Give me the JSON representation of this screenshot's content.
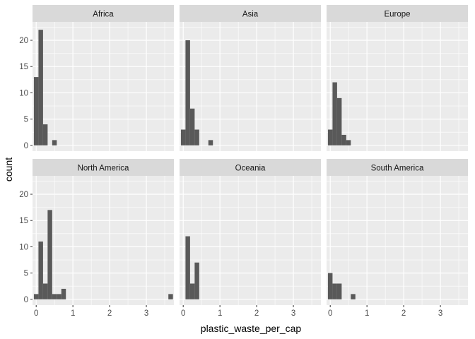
{
  "chart_data": {
    "type": "histogram",
    "title": "",
    "xlabel": "plastic_waste_per_cap",
    "ylabel": "count",
    "xlim": [
      -0.1,
      3.75
    ],
    "ylim": [
      -1.1,
      23.5
    ],
    "x_ticks": [
      0,
      1,
      2,
      3
    ],
    "x_tick_labels": [
      "0",
      "1",
      "2",
      "3"
    ],
    "y_ticks": [
      0,
      5,
      10,
      15,
      20
    ],
    "y_tick_labels": [
      "0",
      "5",
      "10",
      "15",
      "20"
    ],
    "bin_width": 0.1245,
    "facet_layout": "2 rows x 3 columns, shared axes",
    "grid": true,
    "colors": {
      "panel_bg": "#ebebeb",
      "grid_major": "#ffffff",
      "strip_bg": "#d9d9d9",
      "bar_fill": "#595959"
    },
    "facets": [
      {
        "label": "Africa",
        "bins": [
          {
            "x0": -0.0623,
            "x1": 0.0623,
            "count": 13
          },
          {
            "x0": 0.0623,
            "x1": 0.1868,
            "count": 22
          },
          {
            "x0": 0.1868,
            "x1": 0.3113,
            "count": 4
          },
          {
            "x0": 0.4358,
            "x1": 0.5603,
            "count": 1
          }
        ]
      },
      {
        "label": "Asia",
        "bins": [
          {
            "x0": -0.0623,
            "x1": 0.0623,
            "count": 3
          },
          {
            "x0": 0.0623,
            "x1": 0.1868,
            "count": 20
          },
          {
            "x0": 0.1868,
            "x1": 0.3113,
            "count": 7
          },
          {
            "x0": 0.3113,
            "x1": 0.4358,
            "count": 3
          },
          {
            "x0": 0.6848,
            "x1": 0.8093,
            "count": 1
          }
        ]
      },
      {
        "label": "Europe",
        "bins": [
          {
            "x0": -0.0623,
            "x1": 0.0623,
            "count": 3
          },
          {
            "x0": 0.0623,
            "x1": 0.1868,
            "count": 12
          },
          {
            "x0": 0.1868,
            "x1": 0.3113,
            "count": 9
          },
          {
            "x0": 0.3113,
            "x1": 0.4358,
            "count": 2
          },
          {
            "x0": 0.4358,
            "x1": 0.5603,
            "count": 1
          }
        ]
      },
      {
        "label": "North America",
        "bins": [
          {
            "x0": -0.0623,
            "x1": 0.0623,
            "count": 1
          },
          {
            "x0": 0.0623,
            "x1": 0.1868,
            "count": 11
          },
          {
            "x0": 0.1868,
            "x1": 0.3113,
            "count": 3
          },
          {
            "x0": 0.3113,
            "x1": 0.4358,
            "count": 17
          },
          {
            "x0": 0.4358,
            "x1": 0.5603,
            "count": 1
          },
          {
            "x0": 0.5603,
            "x1": 0.6848,
            "count": 1
          },
          {
            "x0": 0.6848,
            "x1": 0.8093,
            "count": 2
          },
          {
            "x0": 3.6,
            "x1": 3.7245,
            "count": 1
          }
        ]
      },
      {
        "label": "Oceania",
        "bins": [
          {
            "x0": 0.0623,
            "x1": 0.1868,
            "count": 12
          },
          {
            "x0": 0.1868,
            "x1": 0.3113,
            "count": 3
          },
          {
            "x0": 0.3113,
            "x1": 0.4358,
            "count": 7
          }
        ]
      },
      {
        "label": "South America",
        "bins": [
          {
            "x0": -0.0623,
            "x1": 0.0623,
            "count": 5
          },
          {
            "x0": 0.0623,
            "x1": 0.1868,
            "count": 3
          },
          {
            "x0": 0.1868,
            "x1": 0.3113,
            "count": 3
          },
          {
            "x0": 0.5603,
            "x1": 0.6848,
            "count": 1
          }
        ]
      }
    ]
  }
}
